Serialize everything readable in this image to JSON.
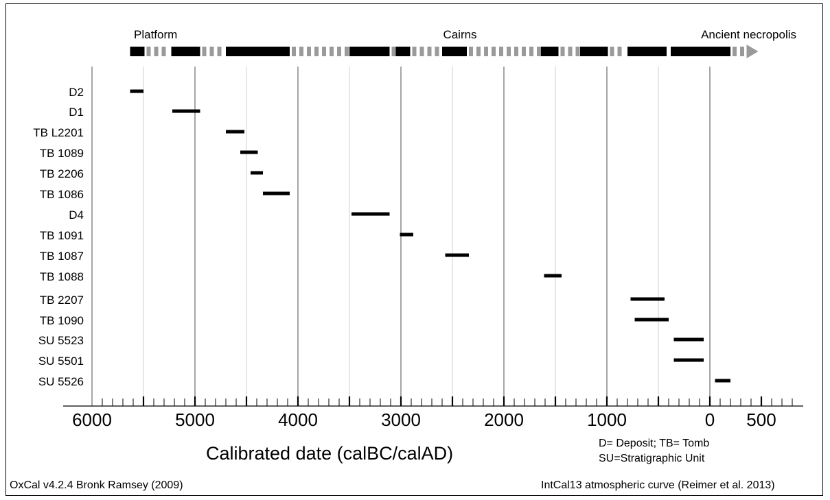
{
  "chart_data": {
    "type": "range-bar",
    "xlabel": "Calibrated date (calBC/calAD)",
    "x_ticks": [
      "6000",
      "5000",
      "4000",
      "3000",
      "2000",
      "1000",
      "0",
      "500"
    ],
    "x_range_calendar_year": [
      -6200,
      850
    ],
    "phases": [
      "Platform",
      "Cairns",
      "Ancient necropolis"
    ],
    "phase_bar_segments": [
      {
        "kind": "solid",
        "from": -5630,
        "to": -5490
      },
      {
        "kind": "dash",
        "from": -5490,
        "to": -5230
      },
      {
        "kind": "solid",
        "from": -5230,
        "to": -4950
      },
      {
        "kind": "dash",
        "from": -4950,
        "to": -4700
      },
      {
        "kind": "solid",
        "from": -4700,
        "to": -4080
      },
      {
        "kind": "dash",
        "from": -4080,
        "to": -3500
      },
      {
        "kind": "solid",
        "from": -3500,
        "to": -3110
      },
      {
        "kind": "dash",
        "from": -3110,
        "to": -3050
      },
      {
        "kind": "solid",
        "from": -3050,
        "to": -2910
      },
      {
        "kind": "dash",
        "from": -2910,
        "to": -2600
      },
      {
        "kind": "solid",
        "from": -2600,
        "to": -2360
      },
      {
        "kind": "dash",
        "from": -2360,
        "to": -1640
      },
      {
        "kind": "solid",
        "from": -1640,
        "to": -1470
      },
      {
        "kind": "dash",
        "from": -1470,
        "to": -1260
      },
      {
        "kind": "solid",
        "from": -1260,
        "to": -990
      },
      {
        "kind": "dash",
        "from": -990,
        "to": -800
      },
      {
        "kind": "solid",
        "from": -800,
        "to": -420
      },
      {
        "kind": "dash",
        "from": -420,
        "to": -380
      },
      {
        "kind": "solid",
        "from": -380,
        "to": 200
      },
      {
        "kind": "dash",
        "from": 200,
        "to": 370
      }
    ],
    "series": [
      {
        "label": "D2",
        "start": -5630,
        "end": -5500
      },
      {
        "label": "D1",
        "start": -5220,
        "end": -4950
      },
      {
        "label": "TB L2201",
        "start": -4700,
        "end": -4520
      },
      {
        "label": "TB 1089",
        "start": -4560,
        "end": -4390
      },
      {
        "label": "TB 2206",
        "start": -4460,
        "end": -4340
      },
      {
        "label": "TB 1086",
        "start": -4340,
        "end": -4080
      },
      {
        "label": "D4",
        "start": -3480,
        "end": -3110
      },
      {
        "label": "TB 1091",
        "start": -3010,
        "end": -2880
      },
      {
        "label": "TB 1087",
        "start": -2570,
        "end": -2340
      },
      {
        "label": "TB 1088",
        "start": -1610,
        "end": -1440
      },
      {
        "label": "TB 2207",
        "start": -770,
        "end": -440
      },
      {
        "label": "TB 1090",
        "start": -730,
        "end": -400
      },
      {
        "label": "SU 5523",
        "start": -350,
        "end": -60
      },
      {
        "label": "SU 5501",
        "start": -350,
        "end": -60
      },
      {
        "label": "SU 5526",
        "start": 50,
        "end": 200
      }
    ]
  },
  "legend_note_1": "D= Deposit; TB= Tomb",
  "legend_note_2": "SU=Stratigraphic Unit",
  "footer_left": "OxCal v4.2.4 Bronk Ramsey (2009)",
  "footer_right": "IntCal13 atmospheric curve (Reimer et al. 2013)"
}
